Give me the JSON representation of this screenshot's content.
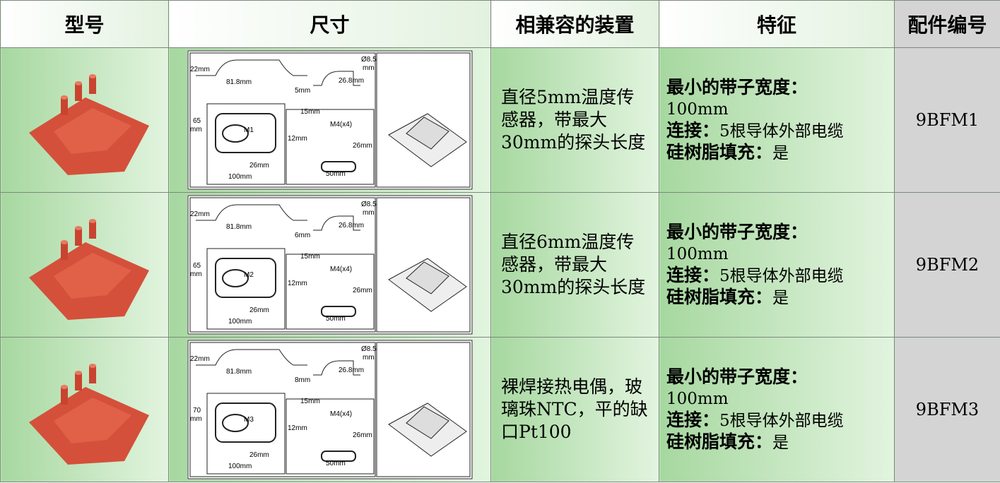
{
  "header": {
    "columns": [
      "型号",
      "尺寸",
      "相兼容的装置",
      "特征",
      "配件编号"
    ]
  },
  "rows": [
    {
      "drawing_labels": [
        "22mm",
        "81.8mm",
        "Ø8.5",
        "mm",
        "26.8mm",
        "5mm",
        "65",
        "mm",
        "M1",
        "15mm",
        "M4(x4)",
        "12mm",
        "26mm",
        "26mm",
        "100mm",
        "50mm"
      ],
      "devices": "直径5mm温度传感器，带最大30mm的探头长度",
      "features": [
        {
          "label": "最小的带子宽度：",
          "value": "100mm"
        },
        {
          "label": "连接：",
          "value": "5根导体外部电缆"
        },
        {
          "label": "硅树脂填充：",
          "value": "是"
        }
      ],
      "part_number": "9BFM1"
    },
    {
      "drawing_labels": [
        "22mm",
        "81.8mm",
        "Ø8.5",
        "mm",
        "26.8mm",
        "6mm",
        "65",
        "mm",
        "M2",
        "15mm",
        "M4(x4)",
        "12mm",
        "26mm",
        "26mm",
        "100mm",
        "50mm"
      ],
      "devices": "直径6mm温度传感器，带最大30mm的探头长度",
      "features": [
        {
          "label": "最小的带子宽度：",
          "value": "100mm"
        },
        {
          "label": "连接：",
          "value": "5根导体外部电缆"
        },
        {
          "label": "硅树脂填充：",
          "value": "是"
        }
      ],
      "part_number": "9BFM2"
    },
    {
      "drawing_labels": [
        "22mm",
        "81.8mm",
        "Ø8.5",
        "mm",
        "26.8mm",
        "8mm",
        "70",
        "mm",
        "M3",
        "15mm",
        "M4(x4)",
        "12mm",
        "26mm",
        "26mm",
        "100mm",
        "50mm"
      ],
      "devices": "裸焊接热电偶，玻璃珠NTC，平的缺口Pt100",
      "features": [
        {
          "label": "最小的带子宽度：",
          "value": "100mm"
        },
        {
          "label": "连接：",
          "value": "5根导体外部电缆"
        },
        {
          "label": "硅树脂填充：",
          "value": "是"
        }
      ],
      "part_number": "9BFM3"
    }
  ]
}
